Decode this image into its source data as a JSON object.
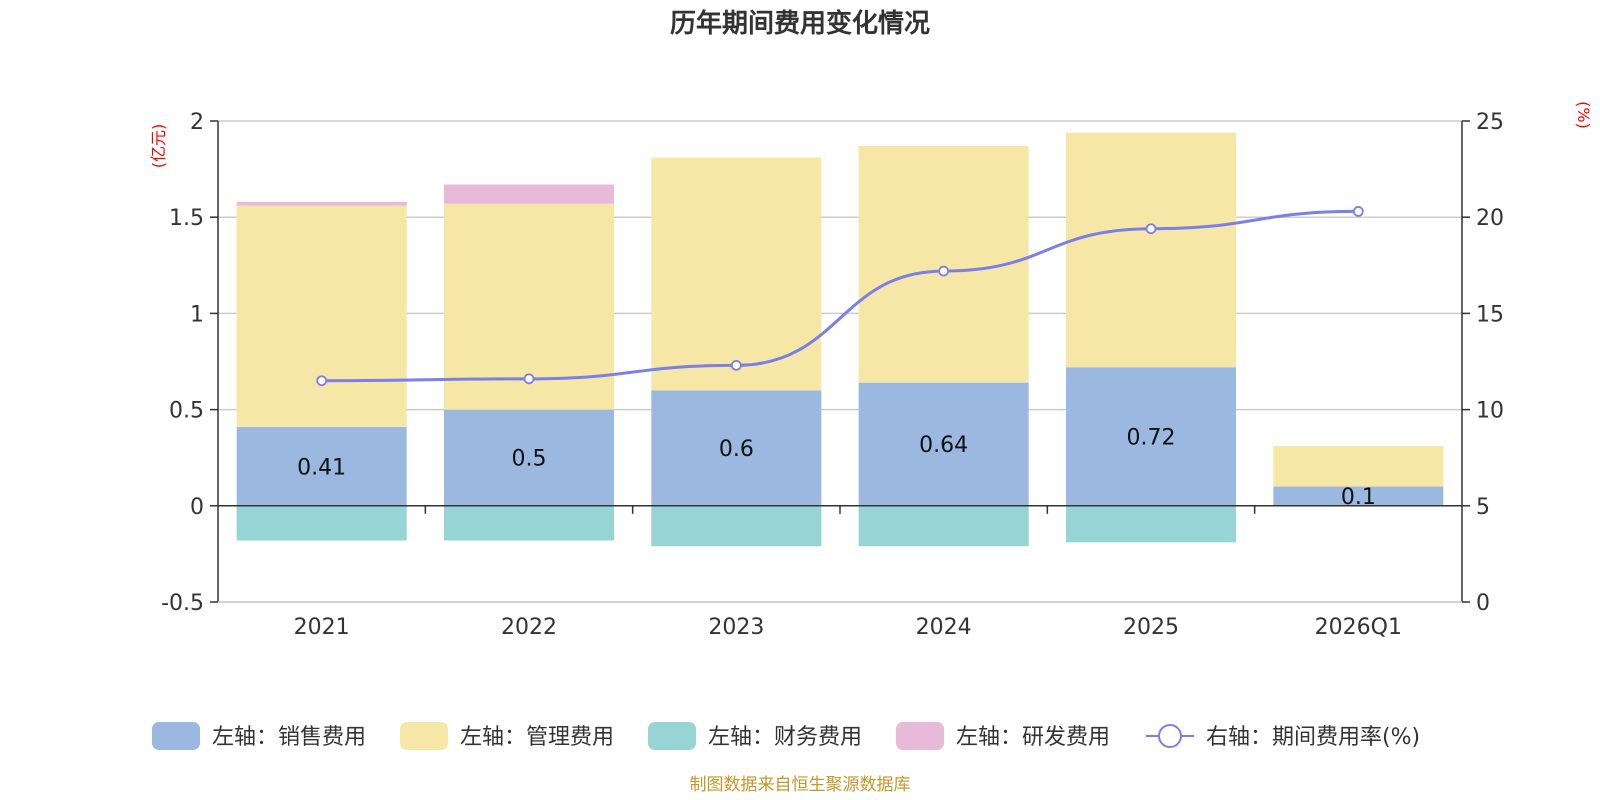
{
  "chart_data": {
    "type": "bar",
    "title": "历年期间费用变化情况",
    "categories": [
      "2021",
      "2022",
      "2023",
      "2024",
      "2025",
      "2026Q1"
    ],
    "left_axis": {
      "unit": "(亿元)",
      "range": [
        -0.5,
        2
      ],
      "ticks": [
        -0.5,
        0,
        0.5,
        1,
        1.5,
        2
      ],
      "tick_labels": [
        "-0.5",
        "0",
        "0.5",
        "1",
        "1.5",
        "2"
      ]
    },
    "right_axis": {
      "unit": "(%)",
      "range": [
        0,
        25
      ],
      "ticks": [
        0,
        5,
        10,
        15,
        20,
        25
      ],
      "tick_labels": [
        "0",
        "5",
        "10",
        "15",
        "20",
        "25"
      ]
    },
    "series": [
      {
        "name": "左轴：销售费用",
        "type": "bar",
        "axis": "left",
        "color": "#9bb8e0",
        "values": [
          0.41,
          0.5,
          0.6,
          0.64,
          0.72,
          0.1
        ],
        "labels": [
          "0.41",
          "0.5",
          "0.6",
          "0.64",
          "0.72",
          "0.1"
        ]
      },
      {
        "name": "左轴：管理费用",
        "type": "bar",
        "axis": "left",
        "color": "#f7e7a6",
        "values": [
          1.15,
          1.07,
          1.21,
          1.23,
          1.22,
          0.21
        ]
      },
      {
        "name": "左轴：财务费用",
        "type": "bar",
        "axis": "left",
        "color": "#97d4d4",
        "values": [
          -0.18,
          -0.18,
          -0.21,
          -0.21,
          -0.19,
          0
        ]
      },
      {
        "name": "左轴：研发费用",
        "type": "bar",
        "axis": "left",
        "color": "#e8b9d9",
        "values": [
          0.02,
          0.1,
          0,
          0,
          0,
          0
        ]
      },
      {
        "name": "右轴：期间费用率(%)",
        "type": "line",
        "axis": "right",
        "color": "#7b7fe8",
        "values": [
          11.5,
          11.6,
          12.3,
          17.2,
          19.4,
          20.3
        ]
      }
    ],
    "grid": true,
    "legend_position": "bottom"
  },
  "source_text": "制图数据来自恒生聚源数据库"
}
